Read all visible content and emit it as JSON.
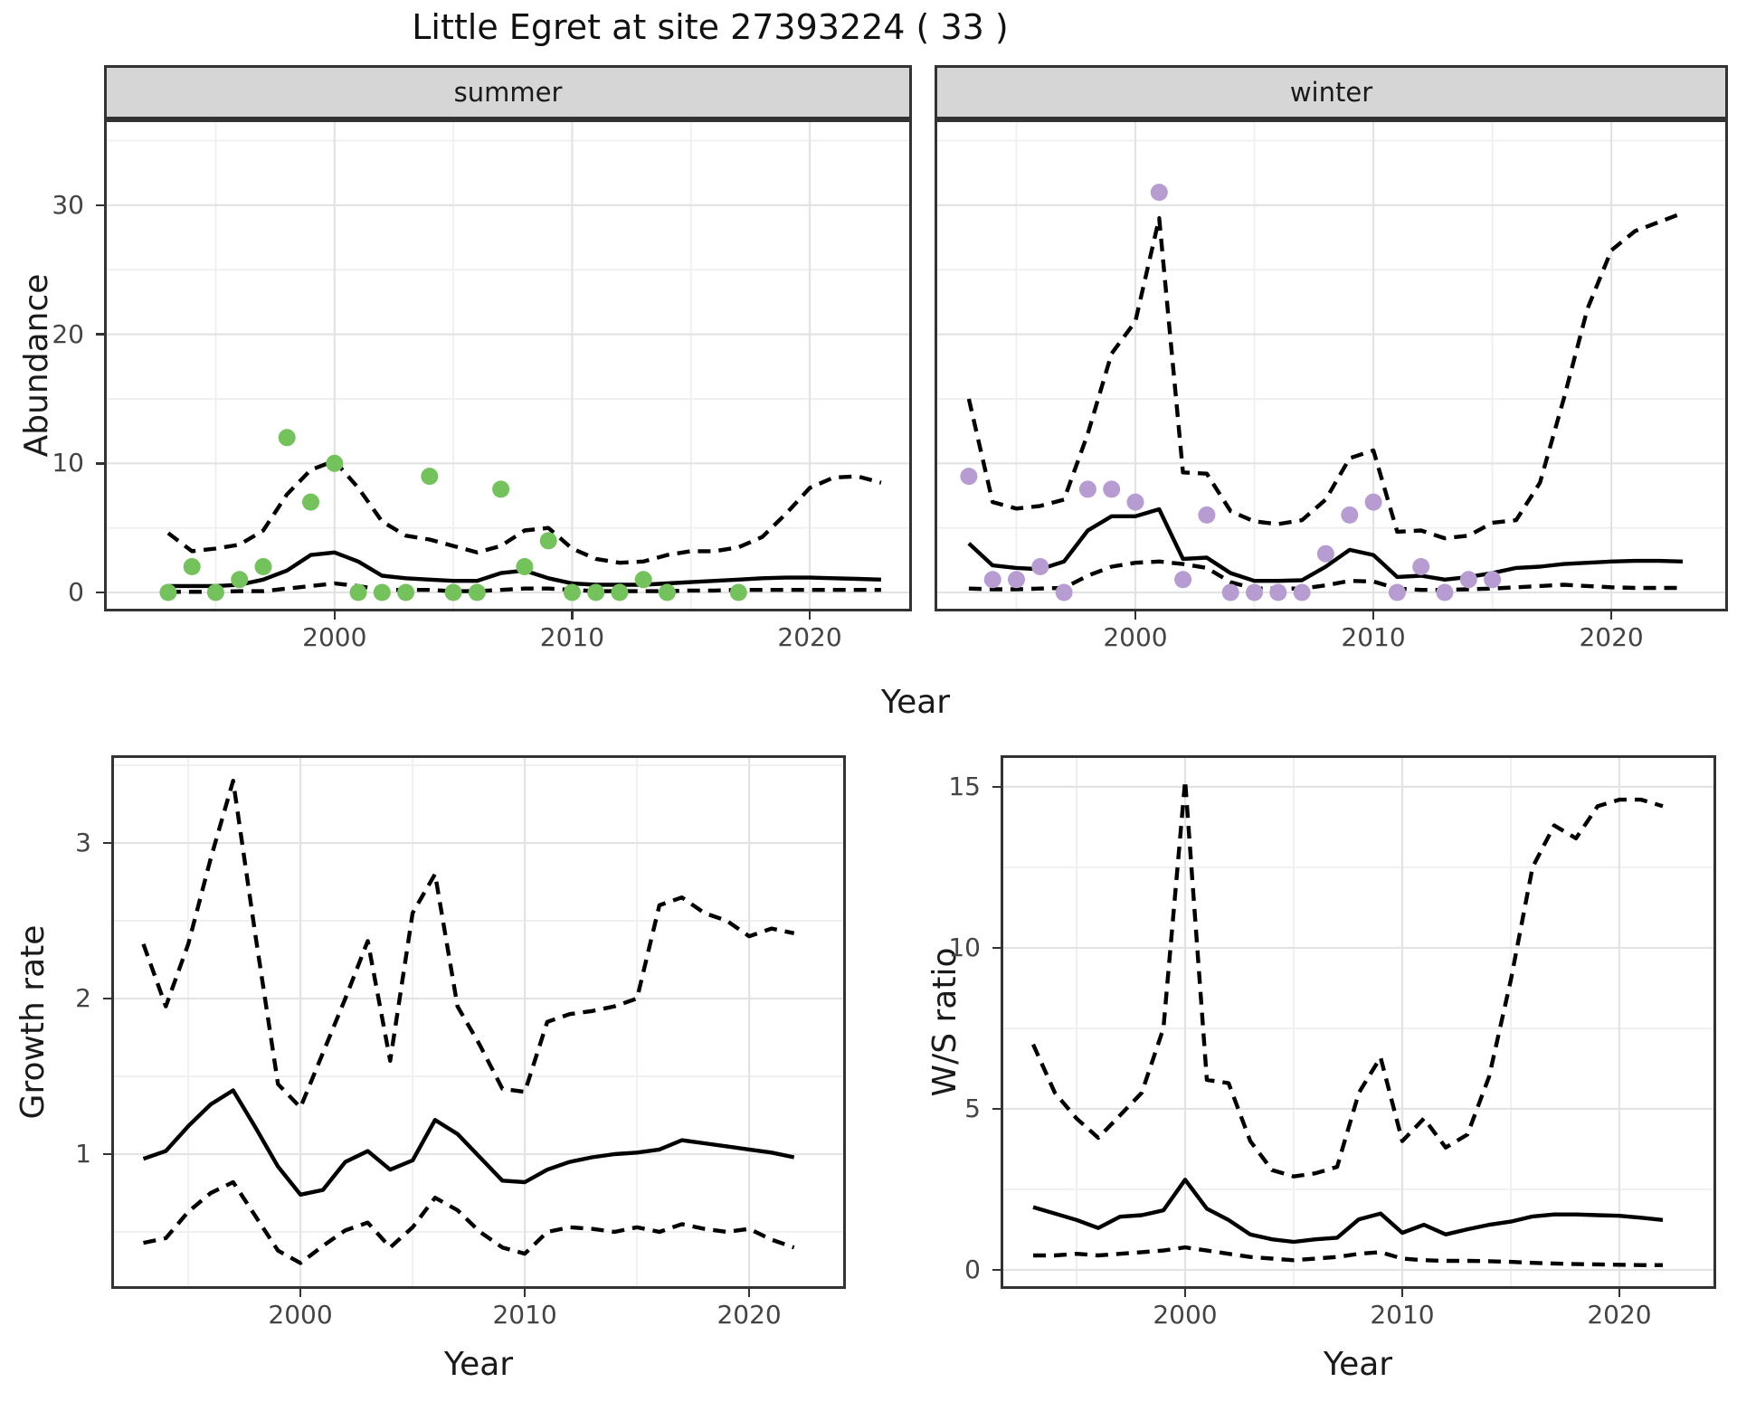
{
  "title": "Little Egret at site 27393224 ( 33 )",
  "facets": {
    "summer": "summer",
    "winter": "winter"
  },
  "axis_titles": {
    "y_abundance": "Abundance",
    "y_growth": "Growth rate",
    "y_ws": "W/S ratio",
    "x_top": "Year",
    "x_growth": "Year",
    "x_ws": "Year"
  },
  "colors": {
    "summer_point": "#74C25C",
    "winter_point": "#B69CD1",
    "line": "#000000",
    "grid_major": "#E3E3E3",
    "grid_minor": "#F0F0F0",
    "panel_border": "#333333",
    "strip_bg": "#D6D6D6",
    "tick_text": "#444444"
  },
  "chart_data": [
    {
      "id": "summer-abundance",
      "type": "line",
      "facet_label": "summer",
      "xlabel": "Year",
      "ylabel": "Abundance",
      "xlim": [
        1990.3,
        2024.3
      ],
      "ylim": [
        -1.47,
        36.65
      ],
      "x_major_ticks": [
        2000,
        2010,
        2020
      ],
      "x_minor_ticks": [
        1995,
        2005,
        2015
      ],
      "y_major_ticks": [
        0,
        10,
        20,
        30
      ],
      "y_minor_ticks": [
        5,
        15,
        25,
        35
      ],
      "y_tick_labels_visible": true,
      "grid": true,
      "legend": false,
      "years": [
        1993,
        1994,
        1995,
        1996,
        1997,
        1998,
        1999,
        2000,
        2001,
        2002,
        2003,
        2004,
        2005,
        2006,
        2007,
        2008,
        2009,
        2010,
        2011,
        2012,
        2013,
        2014,
        2015,
        2016,
        2017,
        2018,
        2019,
        2020,
        2021,
        2022,
        2023
      ],
      "series": [
        {
          "name": "mean",
          "style": "solid",
          "values": [
            0.5,
            0.5,
            0.5,
            0.6,
            1.0,
            1.7,
            2.9,
            3.1,
            2.4,
            1.3,
            1.1,
            1.0,
            0.9,
            0.9,
            1.5,
            1.7,
            1.1,
            0.7,
            0.6,
            0.6,
            0.6,
            0.7,
            0.8,
            0.9,
            1.0,
            1.1,
            1.15,
            1.15,
            1.1,
            1.05,
            1.0
          ]
        },
        {
          "name": "ci_upper",
          "style": "dashed",
          "values": [
            4.6,
            3.2,
            3.4,
            3.7,
            4.8,
            7.6,
            9.5,
            10.2,
            8.1,
            5.5,
            4.4,
            4.1,
            3.6,
            3.1,
            3.6,
            4.8,
            5.0,
            3.4,
            2.6,
            2.3,
            2.4,
            2.9,
            3.2,
            3.2,
            3.5,
            4.3,
            6.1,
            8.1,
            8.9,
            9.0,
            8.5
          ]
        },
        {
          "name": "ci_lower",
          "style": "dashed",
          "values": [
            0.05,
            0.05,
            0.05,
            0.1,
            0.1,
            0.3,
            0.5,
            0.7,
            0.5,
            0.2,
            0.2,
            0.2,
            0.1,
            0.1,
            0.2,
            0.3,
            0.3,
            0.2,
            0.1,
            0.1,
            0.1,
            0.1,
            0.15,
            0.15,
            0.2,
            0.2,
            0.2,
            0.2,
            0.2,
            0.2,
            0.2
          ]
        }
      ],
      "points": {
        "name": "observed_counts",
        "color_key": "summer_point",
        "data": [
          [
            1993,
            0
          ],
          [
            1994,
            2
          ],
          [
            1995,
            0
          ],
          [
            1996,
            1
          ],
          [
            1997,
            2
          ],
          [
            1998,
            12
          ],
          [
            1999,
            7
          ],
          [
            2000,
            10
          ],
          [
            2001,
            0
          ],
          [
            2002,
            0
          ],
          [
            2003,
            0
          ],
          [
            2004,
            9
          ],
          [
            2005,
            0
          ],
          [
            2006,
            0
          ],
          [
            2007,
            8
          ],
          [
            2008,
            2
          ],
          [
            2009,
            4
          ],
          [
            2010,
            0
          ],
          [
            2011,
            0
          ],
          [
            2012,
            0
          ],
          [
            2013,
            1
          ],
          [
            2014,
            0
          ],
          [
            2017,
            0
          ]
        ]
      }
    },
    {
      "id": "winter-abundance",
      "type": "line",
      "facet_label": "winter",
      "xlabel": "Year",
      "ylabel": "Abundance",
      "xlim": [
        1991.56,
        2024.9
      ],
      "ylim": [
        -1.47,
        36.65
      ],
      "x_major_ticks": [
        2000,
        2010,
        2020
      ],
      "x_minor_ticks": [
        1995,
        2005,
        2015
      ],
      "y_major_ticks": [
        0,
        10,
        20,
        30
      ],
      "y_minor_ticks": [
        5,
        15,
        25,
        35
      ],
      "y_tick_labels_visible": false,
      "grid": true,
      "legend": false,
      "years": [
        1993,
        1994,
        1995,
        1996,
        1997,
        1998,
        1999,
        2000,
        2001,
        2002,
        2003,
        2004,
        2005,
        2006,
        2007,
        2008,
        2009,
        2010,
        2011,
        2012,
        2013,
        2014,
        2015,
        2016,
        2017,
        2018,
        2019,
        2020,
        2021,
        2022,
        2023
      ],
      "series": [
        {
          "name": "mean",
          "style": "solid",
          "values": [
            3.8,
            2.1,
            1.9,
            1.8,
            2.4,
            4.8,
            5.9,
            5.9,
            6.45,
            2.6,
            2.7,
            1.5,
            0.9,
            0.9,
            0.95,
            2.0,
            3.3,
            2.9,
            1.2,
            1.3,
            1.0,
            1.2,
            1.5,
            1.9,
            2.0,
            2.2,
            2.3,
            2.4,
            2.45,
            2.45,
            2.4
          ]
        },
        {
          "name": "ci_upper",
          "style": "dashed",
          "values": [
            15.0,
            7.0,
            6.5,
            6.7,
            7.2,
            12.3,
            18.5,
            21.0,
            29.0,
            9.3,
            9.2,
            6.3,
            5.5,
            5.3,
            5.6,
            7.2,
            10.4,
            11.0,
            4.7,
            4.8,
            4.2,
            4.4,
            5.4,
            5.6,
            8.5,
            15.0,
            22.0,
            26.5,
            28.0,
            28.7,
            29.4
          ]
        },
        {
          "name": "ci_lower",
          "style": "dashed",
          "values": [
            0.3,
            0.25,
            0.25,
            0.3,
            0.35,
            1.3,
            2.0,
            2.3,
            2.4,
            2.2,
            1.9,
            0.8,
            0.3,
            0.3,
            0.3,
            0.55,
            0.9,
            0.85,
            0.3,
            0.2,
            0.2,
            0.25,
            0.3,
            0.4,
            0.5,
            0.6,
            0.5,
            0.4,
            0.35,
            0.35,
            0.35
          ]
        }
      ],
      "points": {
        "name": "observed_counts",
        "color_key": "winter_point",
        "data": [
          [
            1993,
            9
          ],
          [
            1994,
            1
          ],
          [
            1995,
            1
          ],
          [
            1996,
            2
          ],
          [
            1997,
            0
          ],
          [
            1998,
            8
          ],
          [
            1999,
            8
          ],
          [
            2000,
            7
          ],
          [
            2001,
            31
          ],
          [
            2002,
            1
          ],
          [
            2003,
            6
          ],
          [
            2004,
            0
          ],
          [
            2005,
            0
          ],
          [
            2006,
            0
          ],
          [
            2007,
            0
          ],
          [
            2008,
            3
          ],
          [
            2009,
            6
          ],
          [
            2010,
            7
          ],
          [
            2011,
            0
          ],
          [
            2012,
            2
          ],
          [
            2013,
            0
          ],
          [
            2014,
            1
          ],
          [
            2015,
            1
          ]
        ]
      }
    },
    {
      "id": "growth-rate",
      "type": "line",
      "facet_label": "",
      "xlabel": "Year",
      "ylabel": "Growth rate",
      "xlim": [
        1991.57,
        2024.31
      ],
      "ylim": [
        0.134,
        3.564
      ],
      "x_major_ticks": [
        2000,
        2010,
        2020
      ],
      "x_minor_ticks": [
        1995,
        2005,
        2015
      ],
      "y_major_ticks": [
        1,
        2,
        3
      ],
      "y_minor_ticks": [
        0.5,
        1.5,
        2.5,
        3.5
      ],
      "y_tick_labels_visible": true,
      "grid": true,
      "legend": false,
      "years": [
        1993,
        1994,
        1995,
        1996,
        1997,
        1998,
        1999,
        2000,
        2001,
        2002,
        2003,
        2004,
        2005,
        2006,
        2007,
        2008,
        2009,
        2010,
        2011,
        2012,
        2013,
        2014,
        2015,
        2016,
        2017,
        2018,
        2019,
        2020,
        2021,
        2022
      ],
      "series": [
        {
          "name": "mean",
          "style": "solid",
          "values": [
            0.97,
            1.02,
            1.18,
            1.32,
            1.41,
            1.17,
            0.92,
            0.74,
            0.77,
            0.95,
            1.02,
            0.9,
            0.96,
            1.22,
            1.13,
            0.98,
            0.83,
            0.82,
            0.9,
            0.95,
            0.98,
            1.0,
            1.01,
            1.03,
            1.09,
            1.07,
            1.05,
            1.03,
            1.01,
            0.98
          ]
        },
        {
          "name": "ci_upper",
          "style": "dashed",
          "values": [
            2.35,
            1.95,
            2.35,
            2.9,
            3.4,
            2.4,
            1.45,
            1.3,
            1.65,
            2.0,
            2.37,
            1.6,
            2.55,
            2.8,
            1.95,
            1.7,
            1.42,
            1.4,
            1.85,
            1.9,
            1.92,
            1.95,
            2.0,
            2.6,
            2.65,
            2.55,
            2.5,
            2.4,
            2.45,
            2.42
          ]
        },
        {
          "name": "ci_lower",
          "style": "dashed",
          "values": [
            0.43,
            0.46,
            0.63,
            0.75,
            0.82,
            0.6,
            0.38,
            0.3,
            0.41,
            0.51,
            0.56,
            0.4,
            0.53,
            0.72,
            0.64,
            0.5,
            0.4,
            0.36,
            0.5,
            0.53,
            0.52,
            0.5,
            0.53,
            0.5,
            0.55,
            0.52,
            0.5,
            0.52,
            0.45,
            0.4
          ]
        }
      ],
      "points": null
    },
    {
      "id": "ws-ratio",
      "type": "line",
      "facet_label": "",
      "xlabel": "Year",
      "ylabel": "W/S ratio",
      "xlim": [
        1991.5,
        2024.46
      ],
      "ylim": [
        -0.59,
        15.98
      ],
      "x_major_ticks": [
        2000,
        2010,
        2020
      ],
      "x_minor_ticks": [
        1995,
        2005,
        2015
      ],
      "y_major_ticks": [
        0,
        5,
        10,
        15
      ],
      "y_minor_ticks": [
        2.5,
        7.5,
        12.5
      ],
      "y_tick_labels_visible": true,
      "grid": true,
      "legend": false,
      "years": [
        1993,
        1994,
        1995,
        1996,
        1997,
        1998,
        1999,
        2000,
        2001,
        2002,
        2003,
        2004,
        2005,
        2006,
        2007,
        2008,
        2009,
        2010,
        2011,
        2012,
        2013,
        2014,
        2015,
        2016,
        2017,
        2018,
        2019,
        2020,
        2021,
        2022
      ],
      "series": [
        {
          "name": "mean",
          "style": "solid",
          "values": [
            1.95,
            1.75,
            1.55,
            1.3,
            1.65,
            1.7,
            1.85,
            2.8,
            1.9,
            1.55,
            1.1,
            0.95,
            0.87,
            0.95,
            1.0,
            1.57,
            1.75,
            1.15,
            1.4,
            1.1,
            1.26,
            1.4,
            1.5,
            1.66,
            1.72,
            1.72,
            1.7,
            1.68,
            1.62,
            1.55
          ]
        },
        {
          "name": "ci_upper",
          "style": "dashed",
          "values": [
            7.0,
            5.5,
            4.7,
            4.1,
            4.8,
            5.5,
            7.5,
            15.2,
            5.9,
            5.8,
            4.0,
            3.1,
            2.9,
            3.0,
            3.2,
            5.5,
            6.6,
            4.0,
            4.7,
            3.8,
            4.2,
            6.0,
            9.0,
            12.5,
            13.8,
            13.4,
            14.4,
            14.6,
            14.6,
            14.4
          ]
        },
        {
          "name": "ci_lower",
          "style": "dashed",
          "values": [
            0.45,
            0.45,
            0.5,
            0.45,
            0.5,
            0.55,
            0.6,
            0.7,
            0.6,
            0.5,
            0.4,
            0.35,
            0.3,
            0.35,
            0.4,
            0.5,
            0.55,
            0.35,
            0.3,
            0.28,
            0.28,
            0.27,
            0.25,
            0.22,
            0.2,
            0.18,
            0.17,
            0.16,
            0.15,
            0.15
          ]
        }
      ],
      "points": null
    }
  ]
}
